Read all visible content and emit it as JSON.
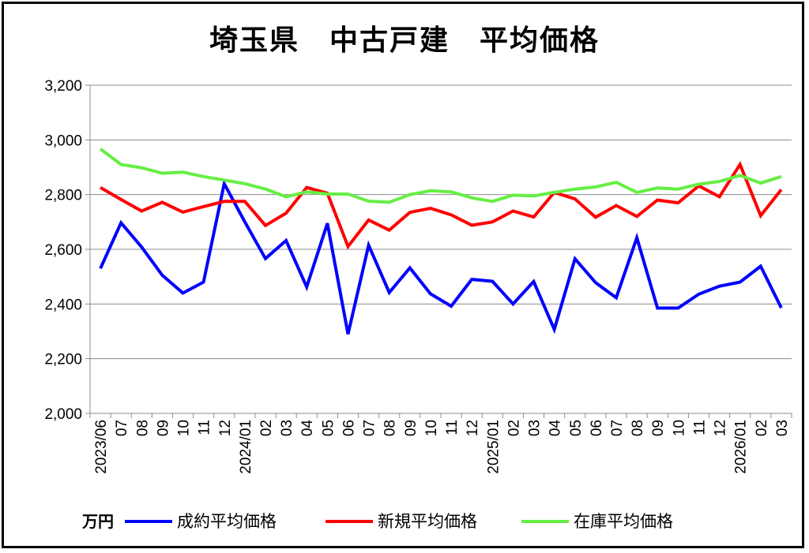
{
  "chart_data": {
    "type": "line",
    "title": "埼玉県　中古戸建　平均価格",
    "unit_label": "万円",
    "ylim": [
      2000,
      3200
    ],
    "yticks": [
      "2,000",
      "2,200",
      "2,400",
      "2,600",
      "2,800",
      "3,000",
      "3,200"
    ],
    "ytick_values": [
      2000,
      2200,
      2400,
      2600,
      2800,
      3000,
      3200
    ],
    "grid": true,
    "legend_position": "bottom",
    "categories": [
      "2023/06",
      "07",
      "08",
      "09",
      "10",
      "11",
      "12",
      "2024/01",
      "02",
      "03",
      "04",
      "05",
      "06",
      "07",
      "08",
      "09",
      "10",
      "11",
      "12",
      "2025/01",
      "02",
      "03",
      "04",
      "05",
      "06",
      "07",
      "08",
      "09",
      "10",
      "11",
      "12",
      "2026/01",
      "02",
      "03"
    ],
    "series": [
      {
        "name": "成約平均価格",
        "color": "#0000ff",
        "values": [
          2530,
          2697,
          2608,
          2505,
          2440,
          2480,
          2840,
          2700,
          2566,
          2632,
          2462,
          2695,
          2290,
          2615,
          2442,
          2532,
          2437,
          2392,
          2490,
          2483,
          2400,
          2482,
          2307,
          2565,
          2478,
          2423,
          2642,
          2385,
          2385,
          2436,
          2465,
          2480,
          2538,
          2386
        ]
      },
      {
        "name": "新規平均価格",
        "color": "#ff0000",
        "values": [
          2826,
          2782,
          2740,
          2772,
          2736,
          2756,
          2775,
          2775,
          2687,
          2732,
          2826,
          2805,
          2610,
          2707,
          2670,
          2735,
          2750,
          2726,
          2688,
          2700,
          2740,
          2718,
          2808,
          2784,
          2717,
          2760,
          2720,
          2780,
          2770,
          2832,
          2792,
          2910,
          2723,
          2818
        ]
      },
      {
        "name": "在庫平均価格",
        "color": "#66ee44",
        "values": [
          2967,
          2910,
          2898,
          2878,
          2882,
          2866,
          2853,
          2840,
          2820,
          2792,
          2810,
          2802,
          2802,
          2776,
          2772,
          2800,
          2814,
          2810,
          2788,
          2775,
          2798,
          2795,
          2808,
          2820,
          2828,
          2845,
          2808,
          2824,
          2820,
          2838,
          2848,
          2870,
          2842,
          2866
        ]
      }
    ]
  }
}
